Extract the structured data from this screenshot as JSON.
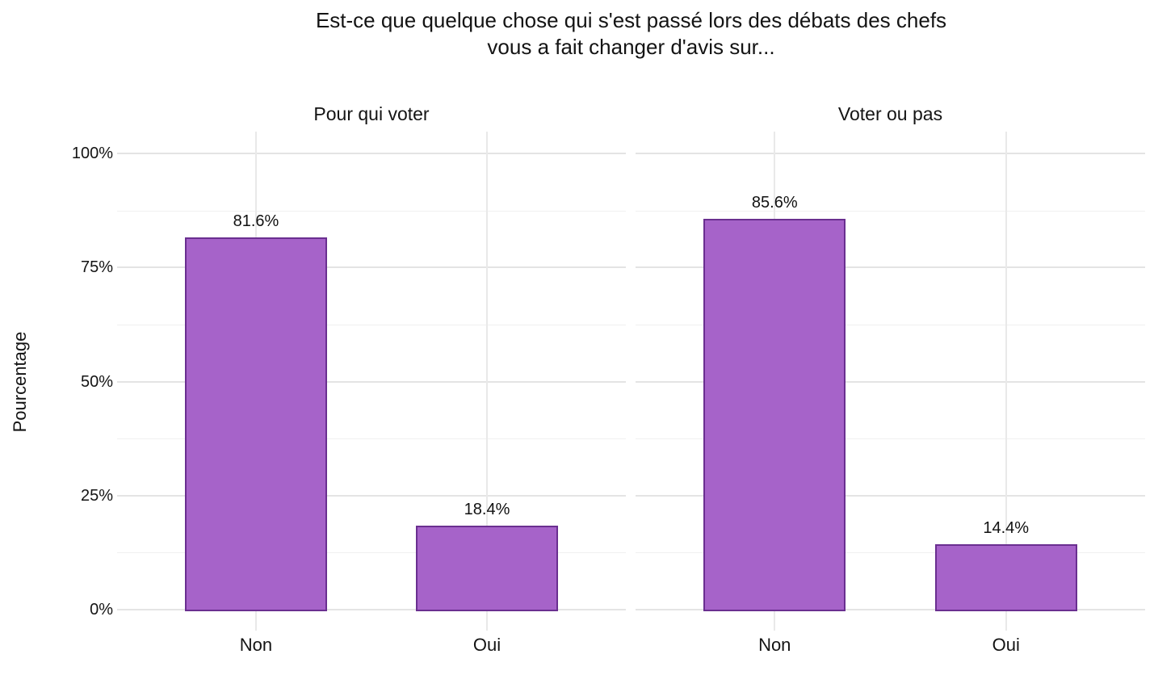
{
  "title": {
    "line1": "Est-ce que quelque chose qui s'est passé lors des débats des chefs",
    "line2": "vous a fait changer d'avis sur..."
  },
  "colors": {
    "bar_fill": "#a663c9",
    "bar_border": "#6a2f90",
    "grid_major": "#e4e4e4",
    "grid_minor": "#f0f0f0",
    "background": "#ffffff",
    "text": "#141414"
  },
  "chart_data": {
    "type": "bar",
    "faceted": true,
    "grid": true,
    "legend": false,
    "y_axis": {
      "label": "Pourcentage",
      "ylim": [
        0,
        100
      ],
      "ticks": [
        0,
        25,
        50,
        75,
        100
      ],
      "tick_labels": [
        "0%",
        "25%",
        "50%",
        "75%",
        "100%"
      ],
      "minor_ticks": [
        12.5,
        37.5,
        62.5,
        87.5
      ]
    },
    "facets": [
      {
        "label": "Pour qui voter",
        "categories": [
          "Non",
          "Oui"
        ],
        "values": [
          81.6,
          18.4
        ],
        "value_labels": [
          "81.6%",
          "18.4%"
        ]
      },
      {
        "label": "Voter ou pas",
        "categories": [
          "Non",
          "Oui"
        ],
        "values": [
          85.6,
          14.4
        ],
        "value_labels": [
          "85.6%",
          "14.4%"
        ]
      }
    ]
  }
}
